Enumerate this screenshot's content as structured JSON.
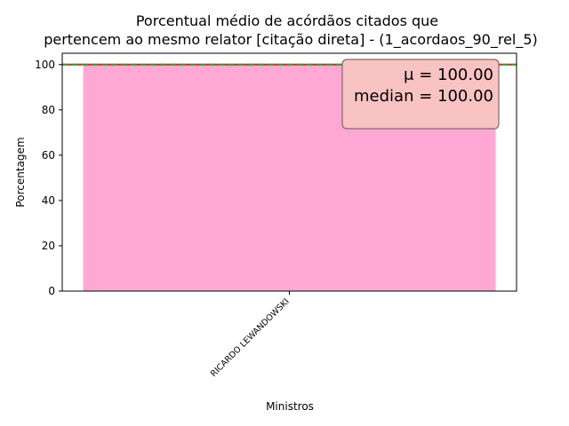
{
  "chart_data": {
    "type": "bar",
    "title_line1": "Porcentual médio de acórdãos citados que",
    "title_line2": "pertencem ao mesmo relator [citação direta] - (1_acordaos_90_rel_5)",
    "xlabel": "Ministros",
    "ylabel": "Porcentagem",
    "categories": [
      "RICARDO LEWANDOWSKI"
    ],
    "values": [
      100
    ],
    "ylim": [
      0,
      105
    ],
    "yticks": [
      0,
      20,
      40,
      60,
      80,
      100
    ],
    "bar_color": "#ffa8d3",
    "mean_line": {
      "value": 100,
      "color": "#d62728"
    },
    "median_line": {
      "value": 100,
      "color": "#2ca02c"
    },
    "stats_box": {
      "mean_text": "μ = 100.00",
      "median_text": "median = 100.00",
      "placement": "top-right",
      "face_color": "#f9c3c3",
      "edge_color": "#7f6a6a"
    },
    "grid": false
  }
}
